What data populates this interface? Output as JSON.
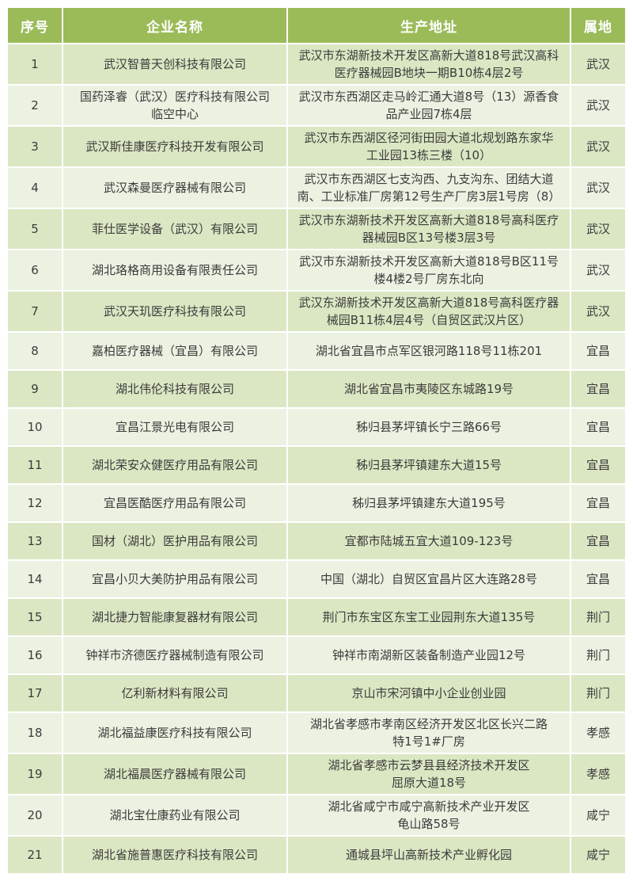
{
  "colors": {
    "header_bg": "#9BBB59",
    "header_text": "#FFFFFF",
    "row_odd_bg": "#DBE7C3",
    "row_even_bg": "#ECF2E1",
    "body_text": "#3B3B3B",
    "grid": "#FFFFFF",
    "page_bg": "#FFFFFF"
  },
  "table": {
    "headers": [
      "序号",
      "企业名称",
      "生产地址",
      "属地"
    ],
    "rows": [
      {
        "no": "1",
        "name": "武汉智普天创科技有限公司",
        "address": "武汉市东湖新技术开发区高新大道818号武汉高科\n医疗器械园B地块一期B10栋4层2号",
        "region": "武汉"
      },
      {
        "no": "2",
        "name": "国药泽睿（武汉）医疗科技有限公司\n临空中心",
        "address": "武汉市东西湖区走马岭汇通大道8号（13）源香食\n品产业园7栋4层",
        "region": "武汉"
      },
      {
        "no": "3",
        "name": "武汉斯佳康医疗科技开发有限公司",
        "address": "武汉市东西湖区径河街田园大道北规划路东家华\n工业园13栋三楼（10）",
        "region": "武汉"
      },
      {
        "no": "4",
        "name": "武汉森曼医疗器械有限公司",
        "address": "武汉市东西湖区七支沟西、九支沟东、团结大道\n南、工业标准厂房第12号生产厂房3层1号房（8）",
        "region": "武汉"
      },
      {
        "no": "5",
        "name": "菲仕医学设备（武汉）有限公司",
        "address": "武汉市东湖新技术开发区高新大道818号高科医疗\n器械园B区13号楼3层3号",
        "region": "武汉"
      },
      {
        "no": "6",
        "name": "湖北珞格商用设备有限责任公司",
        "address": "武汉市东湖新技术开发区高新大道818号B区11号\n楼4楼2号厂房东北向",
        "region": "武汉"
      },
      {
        "no": "7",
        "name": "武汉天玑医疗科技有限公司",
        "address": "武汉东湖新技术开发区高新大道818号高科医疗器\n械园B11栋4层4号（自贸区武汉片区）",
        "region": "武汉"
      },
      {
        "no": "8",
        "name": "嘉柏医疗器械（宜昌）有限公司",
        "address": "湖北省宜昌市点军区银河路118号11栋201",
        "region": "宜昌"
      },
      {
        "no": "9",
        "name": "湖北伟伦科技有限公司",
        "address": "湖北省宜昌市夷陵区东城路19号",
        "region": "宜昌"
      },
      {
        "no": "10",
        "name": "宜昌江景光电有限公司",
        "address": "秭归县茅坪镇长宁三路66号",
        "region": "宜昌"
      },
      {
        "no": "11",
        "name": "湖北荣安众健医疗用品有限公司",
        "address": "秭归县茅坪镇建东大道15号",
        "region": "宜昌"
      },
      {
        "no": "12",
        "name": "宜昌医酷医疗用品有限公司",
        "address": "秭归县茅坪镇建东大道195号",
        "region": "宜昌"
      },
      {
        "no": "13",
        "name": "国材（湖北）医护用品有限公司",
        "address": "宜都市陆城五宜大道109-123号",
        "region": "宜昌"
      },
      {
        "no": "14",
        "name": "宜昌小贝大美防护用品有限公司",
        "address": "中国（湖北）自贸区宜昌片区大连路28号",
        "region": "宜昌"
      },
      {
        "no": "15",
        "name": "湖北捷力智能康复器材有限公司",
        "address": "荆门市东宝区东宝工业园荆东大道135号",
        "region": "荆门"
      },
      {
        "no": "16",
        "name": "钟祥市济德医疗器械制造有限公司",
        "address": "钟祥市南湖新区装备制造产业园12号",
        "region": "荆门"
      },
      {
        "no": "17",
        "name": "亿利新材料有限公司",
        "address": "京山市宋河镇中小企业创业园",
        "region": "荆门"
      },
      {
        "no": "18",
        "name": "湖北福益康医疗科技有限公司",
        "address": "湖北省孝感市孝南区经济开发区北区长兴二路\n特1号1#厂房",
        "region": "孝感"
      },
      {
        "no": "19",
        "name": "湖北福晨医疗器械有限公司",
        "address": "湖北省孝感市云梦县县经济技术开发区\n屈原大道18号",
        "region": "孝感"
      },
      {
        "no": "20",
        "name": "湖北宝仕康药业有限公司",
        "address": "湖北省咸宁市咸宁高新技术产业开发区\n龟山路58号",
        "region": "咸宁"
      },
      {
        "no": "21",
        "name": "湖北省施普惠医疗科技有限公司",
        "address": "通城县坪山高新技术产业孵化园",
        "region": "咸宁"
      }
    ]
  }
}
